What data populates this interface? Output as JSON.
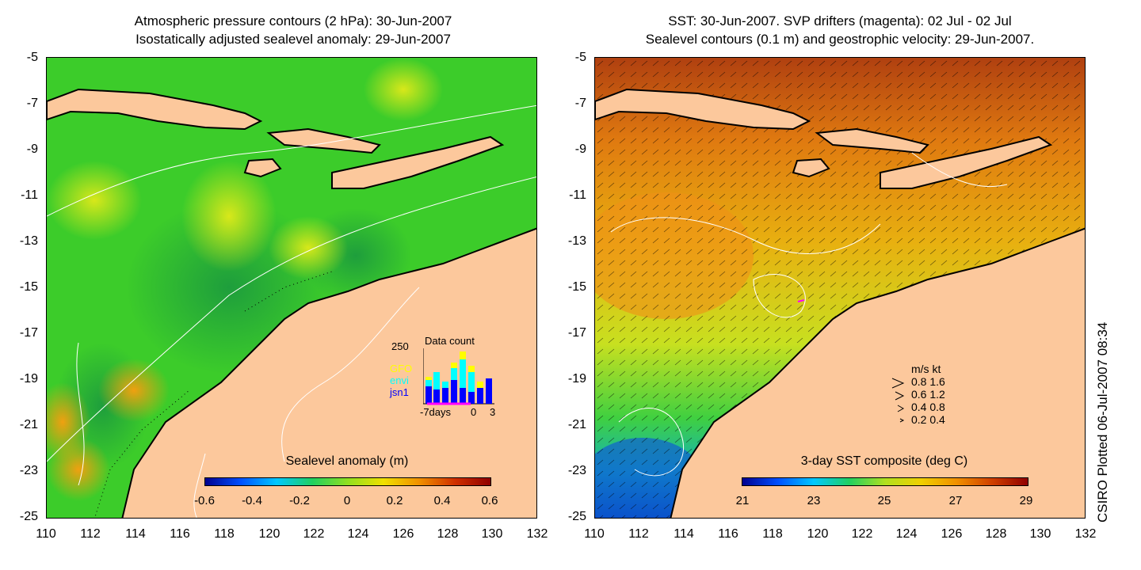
{
  "left": {
    "title_line1": "Atmospheric pressure contours (2 hPa): 30-Jun-2007",
    "title_line2": "Isostatically adjusted sealevel anomaly: 29-Jun-2007",
    "colorbar_title": "Sealevel anomaly (m)",
    "colorbar_ticks": [
      "-0.6",
      "-0.4",
      "-0.2",
      "0",
      "0.2",
      "0.4",
      "0.6"
    ],
    "inset": {
      "title": "Data count",
      "ymax_label": "250",
      "x_start": "-7days",
      "x_zero": "0",
      "x_end": "3",
      "legend": [
        "GFO",
        "envi",
        "jsn1"
      ],
      "legend_colors": [
        "#ffff00",
        "#00ffff",
        "#0000ff"
      ]
    }
  },
  "right": {
    "title_line1": "SST: 30-Jun-2007. SVP drifters (magenta): 02 Jul - 02 Jul",
    "title_line2": "Sealevel contours (0.1 m) and geostrophic velocity: 29-Jun-2007.",
    "colorbar_title": "3-day SST composite (deg C)",
    "colorbar_ticks": [
      "21",
      "23",
      "25",
      "27",
      "29"
    ],
    "velocity_legend": {
      "header": "m/s  kt",
      "rows": [
        "0.8  1.6",
        "0.6  1.2",
        "0.4  0.8",
        "0.2  0.4"
      ]
    }
  },
  "y_ticks": [
    "-5",
    "-7",
    "-9",
    "-11",
    "-13",
    "-15",
    "-17",
    "-19",
    "-21",
    "-23",
    "-25"
  ],
  "x_ticks": [
    "110",
    "112",
    "114",
    "116",
    "118",
    "120",
    "122",
    "124",
    "126",
    "128",
    "130",
    "132"
  ],
  "side_text": "CSIRO Plotted 06-Jul-2007 08:34",
  "colors": {
    "land": "#fcc89c",
    "sla_base": "#2ecc1e",
    "sst_base": "#e8b010",
    "coast": "#000000"
  }
}
